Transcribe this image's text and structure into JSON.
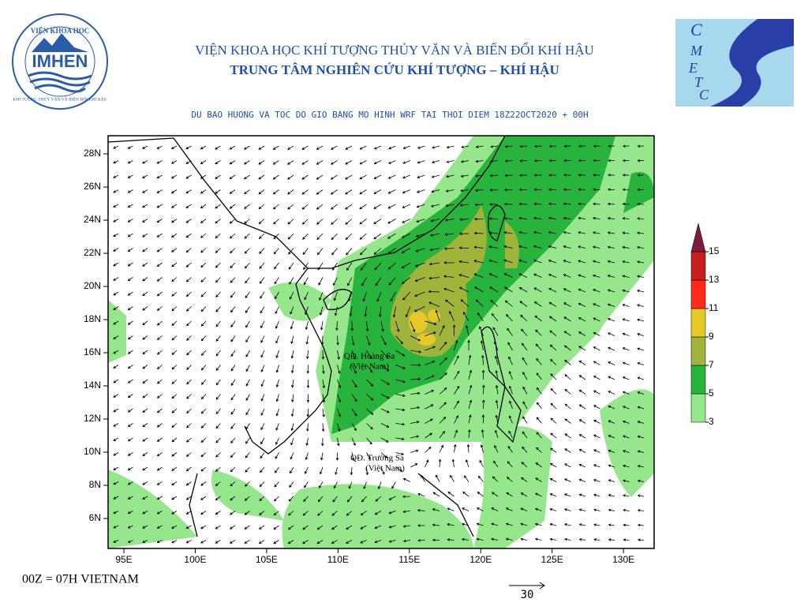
{
  "header": {
    "institute": "VIỆN KHOA HỌC KHÍ TƯỢNG THỦY VĂN VÀ BIẾN ĐỔI KHÍ HẬU",
    "center": "TRUNG TÂM NGHIÊN CỨU KHÍ TƯỢNG – KHÍ HẬU",
    "subtitle": "DU BAO HUONG VA TOC DO GIO BANG MO HINH WRF TAI THOI DIEM  18Z22OCT2020 + 00H"
  },
  "logo_left": {
    "top": "VIỆN KHOA HỌC",
    "name": "IMHEN",
    "bottom": "KHÍ TƯỢNG THỦY VĂN VÀ BIẾN ĐỔI KHÍ HẬU"
  },
  "logo_right": {
    "letters": [
      "C",
      "M",
      "E",
      "T",
      "C"
    ]
  },
  "map": {
    "lat_ticks": [
      {
        "value": 28,
        "label": "28N"
      },
      {
        "value": 26,
        "label": "26N"
      },
      {
        "value": 24,
        "label": "24N"
      },
      {
        "value": 22,
        "label": "22N"
      },
      {
        "value": 20,
        "label": "20N"
      },
      {
        "value": 18,
        "label": "18N"
      },
      {
        "value": 16,
        "label": "16N"
      },
      {
        "value": 14,
        "label": "14N"
      },
      {
        "value": 12,
        "label": "12N"
      },
      {
        "value": 10,
        "label": "10N"
      },
      {
        "value": 8,
        "label": "8N"
      },
      {
        "value": 6,
        "label": "6N"
      }
    ],
    "lon_ticks": [
      {
        "value": 95,
        "label": "95E"
      },
      {
        "value": 100,
        "label": "100E"
      },
      {
        "value": 105,
        "label": "105E"
      },
      {
        "value": 110,
        "label": "110E"
      },
      {
        "value": 115,
        "label": "115E"
      },
      {
        "value": 120,
        "label": "120E"
      },
      {
        "value": 125,
        "label": "125E"
      },
      {
        "value": 130,
        "label": "130E"
      }
    ],
    "labels": [
      "QĐ. Hoàng Sa",
      "(Việt Nam)",
      "QĐ. Trường Sa",
      "(Việt Nam)"
    ]
  },
  "colorbar": {
    "levels": [
      3,
      5,
      7,
      9,
      11,
      13,
      15
    ],
    "colors": [
      "#96e68c",
      "#28b43c",
      "#a0b43c",
      "#e6c828",
      "#ff2a1a",
      "#c81e1e",
      "#781e3c"
    ]
  },
  "footer": "00Z = 07H VIETNAM",
  "reference_vector": "30"
}
